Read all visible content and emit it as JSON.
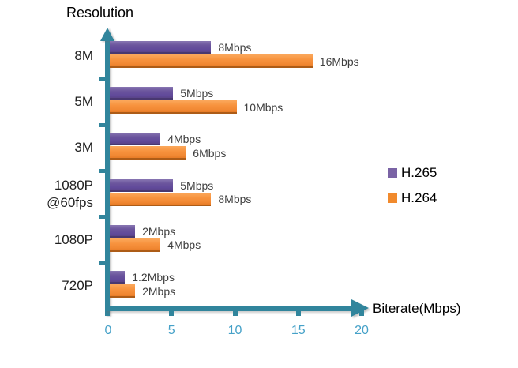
{
  "chart_data": {
    "type": "bar",
    "orientation": "horizontal",
    "ylabel": "Resolution",
    "xlabel": "Biterate(Mbps)",
    "categories": [
      "8M",
      "5M",
      "3M",
      "1080P\n@60fps",
      "1080P",
      "720P"
    ],
    "series": [
      {
        "name": "H.265",
        "color": "#8064A2",
        "values": [
          8,
          5,
          4,
          5,
          2,
          1.2
        ],
        "labels": [
          "8Mbps",
          "5Mbps",
          "4Mbps",
          "5Mbps",
          "2Mbps",
          "1.2Mbps"
        ]
      },
      {
        "name": "H.264",
        "color": "#F79646",
        "values": [
          16,
          10,
          6,
          8,
          4,
          2
        ],
        "labels": [
          "16Mbps",
          "10Mbps",
          "6Mbps",
          "8Mbps",
          "4Mbps",
          "2Mbps"
        ]
      }
    ],
    "x_ticks": [
      0,
      5,
      10,
      15,
      20
    ],
    "xlim": [
      0,
      20
    ],
    "legend": {
      "entries": [
        "H.265",
        "H.264"
      ],
      "position": "right"
    },
    "grid": false
  },
  "colors": {
    "h265_bar": "#6B559D",
    "h264_bar": "#F7923D",
    "axis": "#31859C",
    "tick_label": "#45A1C8",
    "data_label": "#3F3F3F",
    "text": "#000000",
    "background": "#FFFFFF"
  }
}
